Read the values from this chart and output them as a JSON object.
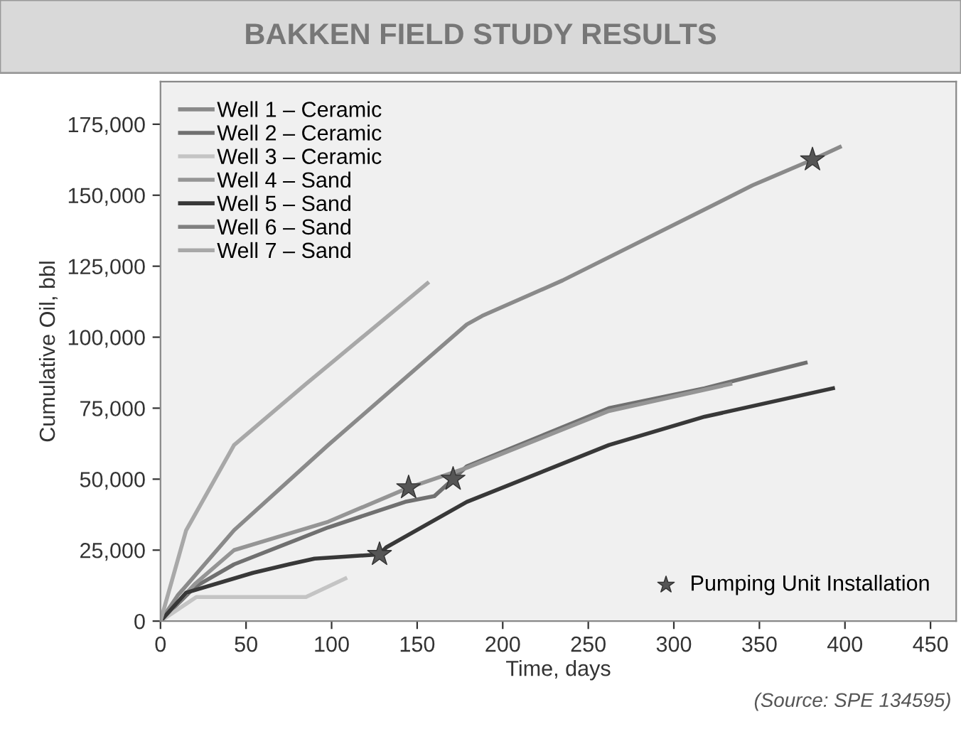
{
  "chart_data": {
    "type": "line",
    "title": "BAKKEN FIELD STUDY RESULTS",
    "xlabel": "Time, days",
    "ylabel": "Cumulative Oil, bbl",
    "xlim": [
      0,
      465
    ],
    "ylim": [
      0,
      190000
    ],
    "xticks": [
      0,
      50,
      100,
      150,
      200,
      250,
      300,
      350,
      400,
      450
    ],
    "yticks": [
      {
        "value": 0,
        "label": "0"
      },
      {
        "value": 25000,
        "label": "25,000"
      },
      {
        "value": 50000,
        "label": "50,000"
      },
      {
        "value": 75000,
        "label": "75,000"
      },
      {
        "value": 100000,
        "label": "100,000"
      },
      {
        "value": 125000,
        "label": "125,000"
      },
      {
        "value": 150000,
        "label": "150,000"
      },
      {
        "value": 175000,
        "label": "175,000"
      }
    ],
    "grid": false,
    "legend": "top left",
    "marker": "none",
    "line_style": "solid",
    "series": [
      {
        "name": "Well 1 – Ceramic",
        "color": "#8a8a8a",
        "x": [
          0,
          10,
          43,
          98,
          179,
          188,
          235,
          318,
          346,
          381,
          397
        ],
        "values": [
          0,
          9000,
          32000,
          62000,
          104500,
          107500,
          120000,
          145000,
          153500,
          162500,
          167000
        ]
      },
      {
        "name": "Well 2 – Ceramic",
        "color": "#707070",
        "x": [
          0,
          20,
          43,
          98,
          143,
          160,
          171,
          179,
          262,
          318,
          377
        ],
        "values": [
          0,
          12000,
          20000,
          33000,
          42000,
          44000,
          50000,
          54500,
          75000,
          82000,
          91000
        ]
      },
      {
        "name": "Well 3 – Ceramic",
        "color": "#c4c4c4",
        "x": [
          0,
          21,
          85,
          108
        ],
        "values": [
          0,
          8500,
          8500,
          15000
        ]
      },
      {
        "name": "Well 4 – Sand",
        "color": "#959595",
        "x": [
          0,
          20,
          43,
          98,
          145,
          179,
          262,
          318,
          333
        ],
        "values": [
          0,
          13000,
          25000,
          35000,
          47000,
          54000,
          74000,
          81500,
          83500
        ]
      },
      {
        "name": "Well 5 – Sand",
        "color": "#383838",
        "x": [
          0,
          15,
          54,
          75,
          90,
          128,
          132,
          179,
          262,
          318,
          393
        ],
        "values": [
          0,
          10000,
          17000,
          20000,
          22000,
          23500,
          26000,
          42000,
          62000,
          72000,
          82000
        ]
      },
      {
        "name": "Well 6 – Sand",
        "color": "#808080"
      },
      {
        "name": "Well 7 – Sand",
        "color": "#a8a8a8",
        "x": [
          0,
          15,
          43,
          85,
          132,
          156
        ],
        "values": [
          0,
          32000,
          62000,
          83500,
          107000,
          119000
        ]
      },
      {
        "name": "Pumping Unit Installation",
        "type": "scatter",
        "marker": "star",
        "color": "#555555",
        "x": [
          128,
          145,
          171,
          381
        ],
        "values": [
          23500,
          47000,
          50000,
          162500
        ]
      }
    ],
    "annotations": [
      "(Source: SPE 134595)"
    ]
  }
}
